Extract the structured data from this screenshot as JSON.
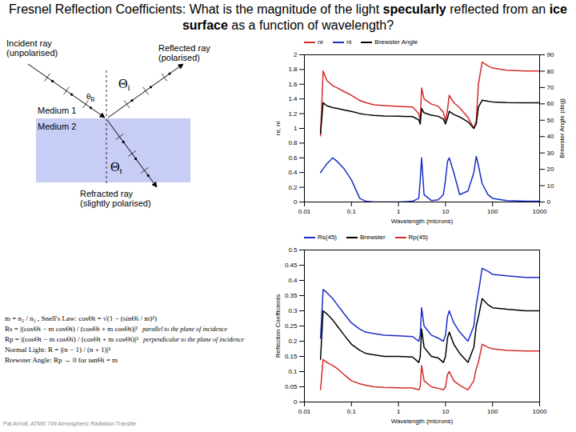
{
  "title": [
    {
      "text": "Fresnel Reflection Coefficients:  What is the magnitude of the light ",
      "bold": false
    },
    {
      "text": "specularly",
      "bold": true
    },
    {
      "text": " reflected from an ",
      "bold": false
    },
    {
      "text": "ice surface",
      "bold": true
    },
    {
      "text": " as a function of wavelength?",
      "bold": false
    }
  ],
  "diagram": {
    "incident": [
      "Incident ray",
      "(unpolarised)"
    ],
    "reflected": [
      "Reflected ray",
      "(polarised)"
    ],
    "refracted": [
      "Refracted ray",
      "(slightly polarised)"
    ],
    "medium1": "Medium 1",
    "medium2": "Medium 2",
    "angles": {
      "incidence": {
        "symbol": "Θ",
        "sub": "i"
      },
      "brewster": {
        "symbol": "θ",
        "sub": "B"
      },
      "transmission": {
        "symbol": "Θ",
        "sub": "t"
      }
    }
  },
  "equations": [
    {
      "formula": "m = n₂ / n₁ ,  Snell's Law: cosΘt = √(1 − (sinΘi / m)²)"
    },
    {
      "formula": "Rs = |(cosΘi − m cosΘt) / (cosΘi + m cosΘt)|²",
      "note": "parallel to the plane of incidence"
    },
    {
      "formula": "Rp = |(cosΘt − m cosΘi) / (cosΘt + m cosΘi)|²",
      "note": "perpendicular to the plane of incidence"
    },
    {
      "formula": "Normal Light: R = |(n − 1) / (n + 1)|²"
    },
    {
      "formula": "Brewster Angle: Rp → 0 for tanΘi = m"
    }
  ],
  "footer": "Pat Arnott, ATMS 749 Atmospheric Radiation Transfer",
  "chart_data": [
    {
      "type": "line",
      "log": "x",
      "grid": false,
      "legend": "top",
      "xlabel": "Wavelength (microns)",
      "ylabel": "nr, ni",
      "y2label": "Brewster Angle (deg)",
      "xlim": [
        0.01,
        1000
      ],
      "xticks": [
        0.01,
        0.1,
        1,
        10,
        100,
        1000
      ],
      "ylim": [
        0,
        2
      ],
      "yticks": [
        0,
        0.2,
        0.4,
        0.6,
        0.8,
        1,
        1.2,
        1.4,
        1.6,
        1.8,
        2
      ],
      "y2lim": [
        0,
        90
      ],
      "y2ticks": [
        0,
        10,
        20,
        30,
        40,
        50,
        60,
        70,
        80,
        90
      ],
      "x": [
        0.022,
        0.025,
        0.03,
        0.04,
        0.05,
        0.07,
        0.1,
        0.15,
        0.2,
        0.3,
        0.5,
        1,
        2,
        2.7,
        2.9,
        3.1,
        3.5,
        5,
        7,
        9,
        10,
        11,
        12,
        15,
        20,
        30,
        40,
        45,
        50,
        60,
        80,
        100,
        200,
        500,
        1000
      ],
      "series": [
        {
          "name": "nr",
          "color": "#d42a2a",
          "values": [
            0.9,
            1.78,
            1.65,
            1.58,
            1.55,
            1.5,
            1.45,
            1.38,
            1.35,
            1.32,
            1.31,
            1.3,
            1.29,
            1.2,
            1.1,
            1.55,
            1.4,
            1.33,
            1.3,
            1.22,
            1.1,
            1.25,
            1.45,
            1.35,
            1.28,
            1.15,
            1.0,
            1.1,
            1.6,
            1.9,
            1.85,
            1.82,
            1.79,
            1.78,
            1.78
          ]
        },
        {
          "name": "ni",
          "color": "#1a2ec8",
          "values": [
            0.4,
            0.45,
            0.52,
            0.6,
            0.55,
            0.45,
            0.3,
            0.05,
            0.01,
            0.0,
            0.0,
            0.0,
            0.01,
            0.05,
            0.3,
            0.6,
            0.1,
            0.02,
            0.03,
            0.1,
            0.3,
            0.55,
            0.6,
            0.4,
            0.1,
            0.15,
            0.4,
            0.62,
            0.5,
            0.25,
            0.1,
            0.05,
            0.02,
            0.01,
            0.01
          ]
        },
        {
          "name": "Brewster Angle",
          "color": "#000000",
          "axis": "y2",
          "values": [
            42,
            60.7,
            58.8,
            57.7,
            57.2,
            56.3,
            55.4,
            54.1,
            53.5,
            52.9,
            52.6,
            52.4,
            52.2,
            50.2,
            47.7,
            57.2,
            54.5,
            53.1,
            52.4,
            50.7,
            47.7,
            51.3,
            55.4,
            53.5,
            52,
            49,
            45,
            47.7,
            58,
            62.2,
            61.6,
            61.2,
            60.8,
            60.7,
            60.7
          ]
        }
      ]
    },
    {
      "type": "line",
      "log": "x",
      "grid": false,
      "legend": "top",
      "xlabel": "Wavelength (microns)",
      "ylabel": "Reflection Coefficients",
      "xlim": [
        0.01,
        1000
      ],
      "xticks": [
        0.01,
        0.1,
        1,
        10,
        100,
        1000
      ],
      "ylim": [
        0,
        0.5
      ],
      "yticks": [
        0,
        0.05,
        0.1,
        0.15,
        0.2,
        0.25,
        0.3,
        0.35,
        0.4,
        0.45,
        0.5
      ],
      "x": [
        0.022,
        0.025,
        0.03,
        0.04,
        0.05,
        0.07,
        0.1,
        0.15,
        0.2,
        0.3,
        0.5,
        1,
        2,
        2.7,
        2.9,
        3.1,
        3.5,
        5,
        7,
        9,
        10,
        11,
        12,
        15,
        20,
        30,
        40,
        45,
        50,
        60,
        80,
        100,
        200,
        500,
        1000
      ],
      "series": [
        {
          "name": "Rs(45)",
          "color": "#1a2ec8",
          "values": [
            0.21,
            0.37,
            0.36,
            0.34,
            0.32,
            0.29,
            0.26,
            0.24,
            0.23,
            0.225,
            0.22,
            0.218,
            0.215,
            0.2,
            0.22,
            0.31,
            0.25,
            0.22,
            0.21,
            0.2,
            0.22,
            0.28,
            0.3,
            0.26,
            0.23,
            0.2,
            0.25,
            0.32,
            0.36,
            0.44,
            0.43,
            0.42,
            0.415,
            0.41,
            0.41
          ]
        },
        {
          "name": "Brewster",
          "color": "#000000",
          "values": [
            0.14,
            0.3,
            0.29,
            0.27,
            0.25,
            0.22,
            0.19,
            0.17,
            0.16,
            0.155,
            0.15,
            0.15,
            0.148,
            0.13,
            0.15,
            0.24,
            0.18,
            0.15,
            0.145,
            0.13,
            0.15,
            0.21,
            0.23,
            0.19,
            0.16,
            0.13,
            0.18,
            0.25,
            0.28,
            0.34,
            0.32,
            0.31,
            0.305,
            0.3,
            0.3
          ]
        },
        {
          "name": "Rp(45)",
          "color": "#d42a2a",
          "values": [
            0.04,
            0.14,
            0.13,
            0.12,
            0.11,
            0.09,
            0.07,
            0.06,
            0.055,
            0.05,
            0.048,
            0.047,
            0.046,
            0.04,
            0.05,
            0.12,
            0.07,
            0.05,
            0.045,
            0.04,
            0.05,
            0.09,
            0.1,
            0.07,
            0.055,
            0.04,
            0.07,
            0.11,
            0.13,
            0.19,
            0.18,
            0.175,
            0.17,
            0.168,
            0.168
          ]
        }
      ]
    }
  ]
}
